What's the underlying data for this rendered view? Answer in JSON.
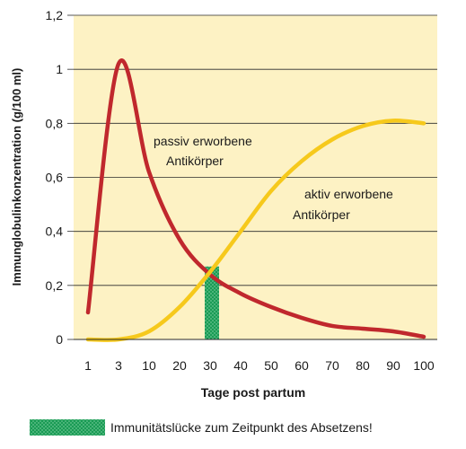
{
  "chart_data": {
    "type": "line",
    "title": "",
    "xlabel": "Tage post partum",
    "ylabel": "Immunglobulinkonzentration (g/100 ml)",
    "x_categories": [
      "1",
      "3",
      "10",
      "20",
      "30",
      "40",
      "50",
      "60",
      "70",
      "80",
      "90",
      "100"
    ],
    "y_ticks": [
      "0",
      "0,2",
      "0,4",
      "0,6",
      "0,8",
      "1",
      "1,2"
    ],
    "ylim": [
      0,
      1.2
    ],
    "grid": "horizontal",
    "background_color": "#fdf2c4",
    "series": [
      {
        "name": "passiv erworbene Antikörper",
        "color": "#c0282d",
        "label_lines": [
          "passiv erworbene",
          "Antikörper"
        ],
        "points": [
          {
            "x": "1",
            "y": 0.1
          },
          {
            "x": "3",
            "y": 1.02
          },
          {
            "x": "10",
            "y": 0.62
          },
          {
            "x": "20",
            "y": 0.37
          },
          {
            "x": "30",
            "y": 0.24
          },
          {
            "x": "40",
            "y": 0.17
          },
          {
            "x": "50",
            "y": 0.12
          },
          {
            "x": "60",
            "y": 0.08
          },
          {
            "x": "70",
            "y": 0.05
          },
          {
            "x": "80",
            "y": 0.04
          },
          {
            "x": "90",
            "y": 0.03
          },
          {
            "x": "100",
            "y": 0.01
          }
        ]
      },
      {
        "name": "aktiv erworbene Antikörper",
        "color": "#f6c91c",
        "label_lines": [
          "aktiv erworbene",
          "Antikörper"
        ],
        "points": [
          {
            "x": "1",
            "y": 0.0
          },
          {
            "x": "3",
            "y": 0.0
          },
          {
            "x": "10",
            "y": 0.03
          },
          {
            "x": "20",
            "y": 0.12
          },
          {
            "x": "30",
            "y": 0.25
          },
          {
            "x": "40",
            "y": 0.4
          },
          {
            "x": "50",
            "y": 0.55
          },
          {
            "x": "60",
            "y": 0.66
          },
          {
            "x": "70",
            "y": 0.74
          },
          {
            "x": "80",
            "y": 0.79
          },
          {
            "x": "90",
            "y": 0.81
          },
          {
            "x": "100",
            "y": 0.8
          }
        ]
      }
    ],
    "highlight_bar": {
      "x_center": "30",
      "y_top": 0.27,
      "color": "#1a9b55",
      "legend_label": "Immunitätslücke zum Zeitpunkt des Absetzens!"
    }
  }
}
